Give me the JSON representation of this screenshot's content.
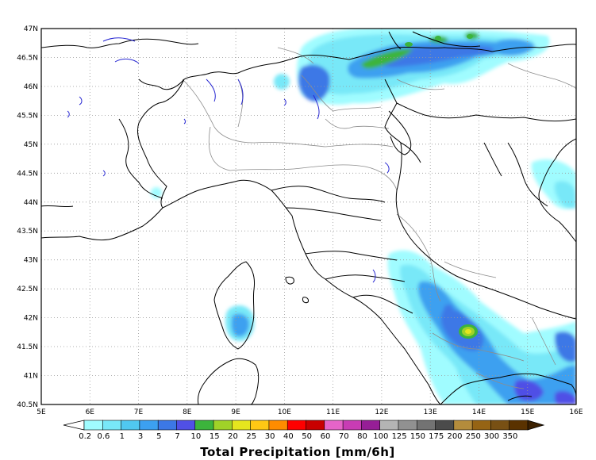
{
  "map": {
    "title": "Total Precipitation [mm/6h]",
    "lon_labels": [
      "5E",
      "6E",
      "7E",
      "8E",
      "9E",
      "10E",
      "11E",
      "12E",
      "13E",
      "14E",
      "15E",
      "16E"
    ],
    "lat_labels": [
      "47N",
      "46.5N",
      "46N",
      "45.5N",
      "45N",
      "44.5N",
      "44N",
      "43.5N",
      "43N",
      "42.5N",
      "42N",
      "41.5N",
      "41N",
      "40.5N"
    ],
    "lon_range": [
      5,
      16
    ],
    "lat_range": [
      40.5,
      47
    ],
    "grid": "dotted",
    "legend": {
      "values": [
        "0.2",
        "0.6",
        "1",
        "3",
        "5",
        "7",
        "10",
        "15",
        "20",
        "25",
        "30",
        "40",
        "50",
        "60",
        "70",
        "80",
        "100",
        "125",
        "150",
        "175",
        "200",
        "250",
        "300",
        "350"
      ],
      "colors": [
        "#a0fcff",
        "#78e8f8",
        "#50c8f0",
        "#3ca0f0",
        "#3c78e6",
        "#5050e6",
        "#3cb43c",
        "#a0d228",
        "#e6e61e",
        "#ffc814",
        "#ff8c00",
        "#ff0000",
        "#c80000",
        "#e664c8",
        "#c83cb4",
        "#961e96",
        "#b4b4b4",
        "#919191",
        "#737373",
        "#4b4b4b",
        "#b48c3c",
        "#966414",
        "#785014",
        "#5a3200"
      ],
      "low_arrow_color": "#ffffff",
      "high_arrow_color": "#3c2000"
    }
  }
}
